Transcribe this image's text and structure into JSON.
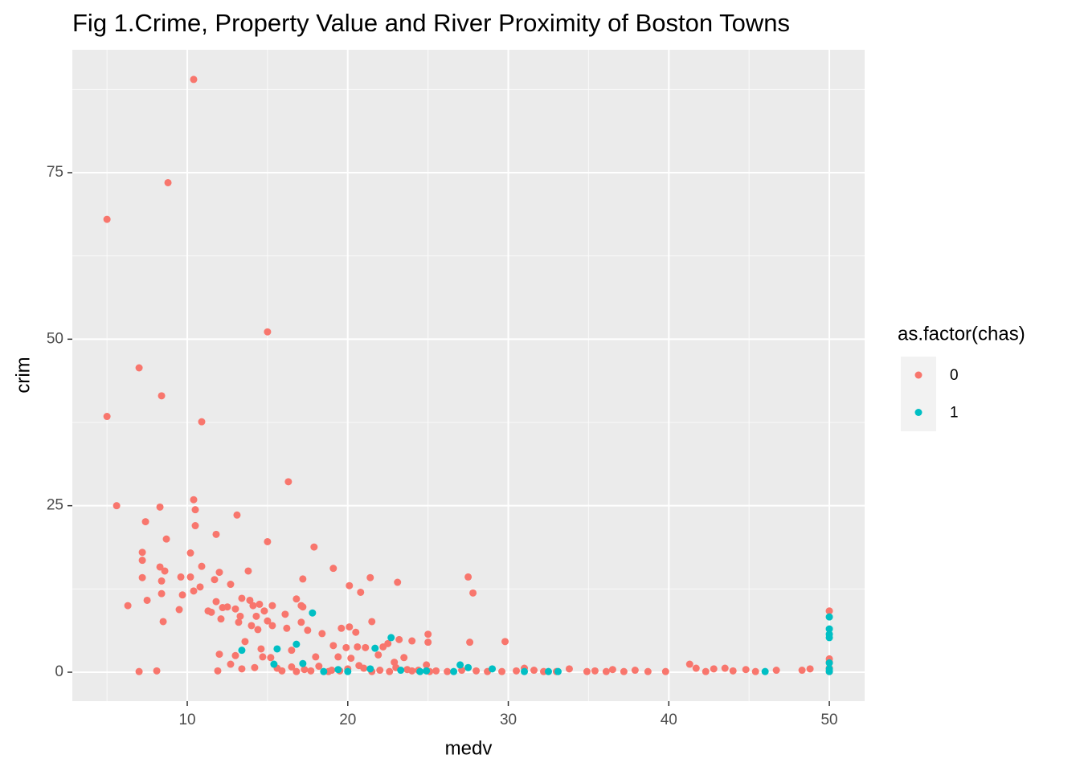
{
  "chart_data": {
    "type": "scatter",
    "title": "Fig 1.Crime, Property Value and River Proximity of Boston Towns",
    "x_label": "medv",
    "y_label": "crim",
    "legend_title": "as.factor(chas)",
    "legend_position": "right",
    "grid": true,
    "xlim": [
      2.84,
      52.2
    ],
    "ylim": [
      -4.34,
      93.45
    ],
    "xticks": [
      10,
      20,
      30,
      40,
      50
    ],
    "yticks": [
      0,
      25,
      50,
      75
    ],
    "xminor": [
      5,
      15,
      25,
      35,
      45
    ],
    "yminor": [
      12.5,
      37.5,
      62.5,
      87.5
    ],
    "series": [
      {
        "name": "0",
        "color": "#F8766D",
        "x": [
          5,
          8.8,
          10.4,
          5,
          7,
          8.4,
          15,
          10.9,
          5.6,
          16.3,
          8.3,
          10.4,
          10.5,
          13.1,
          7.4,
          10.5,
          11.8,
          8.7,
          15,
          7.2,
          17.9,
          10.2,
          7.2,
          8.3,
          8.6,
          10.9,
          12,
          13.8,
          19.1,
          7.2,
          8.4,
          9.6,
          10.2,
          11.7,
          12.7,
          17.2,
          21.4,
          23.1,
          27.5,
          10.4,
          8.4,
          9.7,
          10.8,
          20.1,
          20.8,
          27.8,
          7.5,
          6.3,
          9.5,
          11.5,
          11.8,
          12.5,
          13.4,
          13.9,
          14.1,
          14.5,
          15.3,
          16.8,
          17.1,
          13,
          14.8,
          11.3,
          12.2,
          16.1,
          17.2,
          13.3,
          14.3,
          12.1,
          13.2,
          14,
          15,
          15.3,
          17.1,
          14.4,
          16.2,
          18.4,
          17.5,
          19.1,
          19.6,
          20.1,
          20.5,
          21.5,
          22.5,
          23.2,
          24,
          25,
          25,
          19.9,
          20.6,
          21.1,
          22.2,
          13.6,
          14.6,
          16.5,
          15.2,
          12,
          13,
          14.7,
          18,
          19.4,
          20.2,
          21.9,
          23.5,
          27.6,
          29.8,
          8.5,
          7,
          8.1,
          11.9,
          12.7,
          13.4,
          14.2,
          15.6,
          16.5,
          17.3,
          18.2,
          19,
          20,
          21,
          22,
          23,
          24,
          25.1,
          25.5,
          26.2,
          27.1,
          28,
          28.7,
          29.6,
          30.5,
          31,
          31.6,
          32.2,
          33,
          33.8,
          34.9,
          35.4,
          36.1,
          36.5,
          37.2,
          37.9,
          38.7,
          39.8,
          41.3,
          41.7,
          42.3,
          42.8,
          43.5,
          44,
          44.8,
          45.4,
          46.7,
          48.3,
          48.8,
          50,
          50,
          50,
          50,
          50,
          18.8,
          19.5,
          21.5,
          22.6,
          23.7,
          24.4,
          17.7,
          16.8,
          15.9,
          20.7,
          22.9,
          24.9
        ],
        "values": [
          68,
          73.5,
          89,
          38.4,
          45.7,
          41.5,
          51.1,
          37.6,
          25,
          28.6,
          24.8,
          25.9,
          24.4,
          23.6,
          22.6,
          22,
          20.7,
          20,
          19.6,
          18,
          18.8,
          17.9,
          16.8,
          15.8,
          15.2,
          15.9,
          15,
          15.2,
          15.6,
          14.2,
          13.7,
          14.3,
          14.3,
          13.9,
          13.2,
          14,
          14.2,
          13.5,
          14.3,
          12.2,
          11.8,
          11.6,
          12.8,
          13,
          12,
          11.9,
          10.8,
          10,
          9.4,
          9,
          10.6,
          9.8,
          11.1,
          10.8,
          10,
          10.2,
          10,
          11,
          10,
          9.5,
          9.2,
          9.2,
          9.7,
          8.7,
          9.8,
          8.4,
          8.4,
          8,
          7.5,
          7,
          7.7,
          7,
          7.5,
          6.4,
          6.6,
          5.8,
          6.3,
          4,
          6.6,
          6.8,
          6,
          7.6,
          4.3,
          4.9,
          4.7,
          5.7,
          4.5,
          3.7,
          3.8,
          3.7,
          3.8,
          4.6,
          3.5,
          3.3,
          2.2,
          2.7,
          2.5,
          2.3,
          2.3,
          2.3,
          2.1,
          2.6,
          2.2,
          4.5,
          4.6,
          7.6,
          0.1,
          0.2,
          0.2,
          1.2,
          0.5,
          0.7,
          0.6,
          0.8,
          0.4,
          0.9,
          0.3,
          0.5,
          0.6,
          0.3,
          0.7,
          0.2,
          0.1,
          0.2,
          0.1,
          0.3,
          0.2,
          0.1,
          0.1,
          0.2,
          0.6,
          0.3,
          0.1,
          0.1,
          0.5,
          0.1,
          0.2,
          0.1,
          0.4,
          0.1,
          0.3,
          0.1,
          0.1,
          1.2,
          0.6,
          0.1,
          0.5,
          0.6,
          0.2,
          0.4,
          0.1,
          0.3,
          0.3,
          0.5,
          9.2,
          2,
          1.5,
          0.6,
          0.1,
          0.1,
          0.2,
          0.1,
          0.1,
          0.4,
          0.3,
          0.2,
          0.1,
          0.2,
          1,
          1.5,
          1.1
        ]
      },
      {
        "name": "1",
        "color": "#00BFC4",
        "x": [
          13.4,
          15.4,
          15.6,
          16.8,
          17.2,
          17.8,
          22.7,
          21.7,
          21.4,
          19.4,
          20,
          23.3,
          24.9,
          27,
          27.5,
          29,
          31,
          32.5,
          33.1,
          46,
          50,
          50,
          50,
          50,
          50,
          50,
          50,
          24.5,
          26.6,
          18.5
        ],
        "values": [
          3.3,
          1.2,
          3.5,
          4.2,
          1.3,
          8.9,
          5.2,
          3.6,
          0.5,
          0.4,
          0.1,
          0.3,
          0.2,
          1.1,
          0.7,
          0.5,
          0.1,
          0.1,
          0.1,
          0.1,
          8.3,
          6.5,
          5.7,
          5.2,
          1.4,
          0.5,
          0.1,
          0.1,
          0.1,
          0.1
        ]
      }
    ]
  }
}
